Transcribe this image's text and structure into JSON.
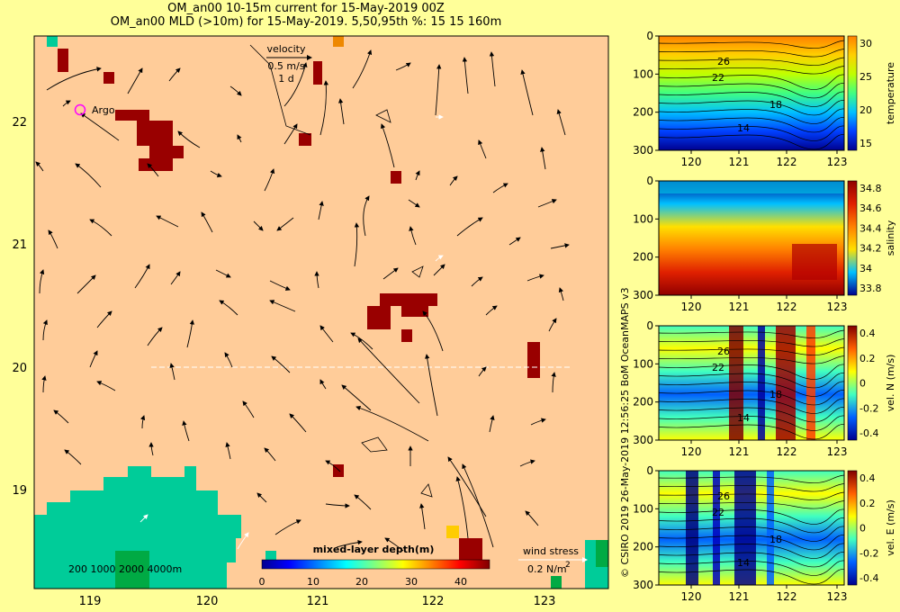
{
  "title_line1": "OM_an00 10-15m current for 15-May-2019 00Z",
  "title_line2": "OM_an00 MLD (>10m) for 15-May-2019. 5,50,95th %: 15   15  160m",
  "map": {
    "x_ticks": [
      "119",
      "120",
      "121",
      "122",
      "123"
    ],
    "y_ticks": [
      "22",
      "21",
      "20",
      "19"
    ],
    "velocity_key": {
      "label": "velocity",
      "speed": "0.5 m/s",
      "time": "1 d"
    },
    "argo_label": "Argo",
    "depth_scale": "200 1000  2000  4000m",
    "colorbar_title": "mixed-layer depth(m)",
    "colorbar_ticks": [
      "0",
      "10",
      "20",
      "30",
      "40"
    ],
    "wind_label": "wind stress",
    "wind_value": "0.2 N/m",
    "wind_exp": "2",
    "colors": {
      "land": "#00cc99",
      "ocean": "#ffcc99",
      "mld_high": "#990000",
      "background": "#ffff99"
    }
  },
  "panels": [
    {
      "name": "temperature",
      "label": "temperature",
      "y_ticks": [
        "0",
        "100",
        "200",
        "300"
      ],
      "x_ticks": [
        "120",
        "121",
        "122",
        "123"
      ],
      "cb_ticks": [
        "30",
        "25",
        "20",
        "15"
      ],
      "contours": [
        "26",
        "22",
        "18",
        "14"
      ]
    },
    {
      "name": "salinity",
      "label": "salinity",
      "y_ticks": [
        "0",
        "100",
        "200",
        "300"
      ],
      "x_ticks": [
        "120",
        "121",
        "122",
        "123"
      ],
      "cb_ticks": [
        "34.8",
        "34.6",
        "34.4",
        "34.2",
        "34",
        "33.8"
      ],
      "contours": []
    },
    {
      "name": "vel-n",
      "label": "vel. N (m/s)",
      "y_ticks": [
        "0",
        "100",
        "200",
        "300"
      ],
      "x_ticks": [
        "120",
        "121",
        "122",
        "123"
      ],
      "cb_ticks": [
        "0.4",
        "0.2",
        "0",
        "-0.2",
        "-0.4"
      ],
      "contours": [
        "26",
        "22",
        "18",
        "14"
      ]
    },
    {
      "name": "vel-e",
      "label": "vel. E (m/s)",
      "y_ticks": [
        "0",
        "100",
        "200",
        "300"
      ],
      "x_ticks": [
        "120",
        "121",
        "122",
        "123"
      ],
      "cb_ticks": [
        "0.4",
        "0.2",
        "0",
        "-0.2",
        "-0.4"
      ],
      "contours": [
        "26",
        "22",
        "18",
        "14"
      ]
    }
  ],
  "credit": "© CSIRO 2019   26-May-2019 12:56:25 BoM OceanMAPS v3"
}
